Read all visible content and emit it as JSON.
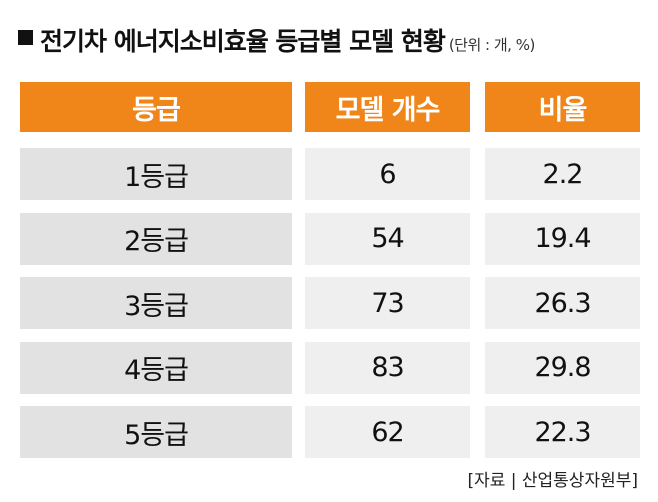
{
  "header": {
    "title": "전기차 에너지소비효율 등급별 모델 현황",
    "unit": "(단위 : 개, %)"
  },
  "table": {
    "columns": [
      "등급",
      "모델 개수",
      "비율"
    ],
    "rows": [
      [
        "1등급",
        6,
        2.2
      ],
      [
        "2등급",
        54,
        19.4
      ],
      [
        "3등급",
        73,
        26.3
      ],
      [
        "4등급",
        83,
        29.8
      ],
      [
        "5등급",
        62,
        22.3
      ]
    ]
  },
  "source": "[자료 | 산업통상자원부]"
}
